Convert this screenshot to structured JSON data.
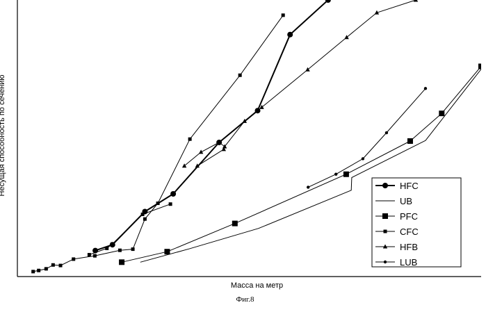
{
  "caption": "Фиг.8",
  "chart_data": {
    "type": "line",
    "title": "",
    "xlabel": "Масса на метр",
    "ylabel": "Несущая способность по сечению",
    "xlim": [
      0,
      100
    ],
    "ylim": [
      0,
      100
    ],
    "grid": false,
    "legend_position": "bottom-right",
    "series": [
      {
        "name": "HFC",
        "marker": "circle-large",
        "line": "thick",
        "points": [
          [
            16.8,
            9.4
          ],
          [
            20.5,
            11.5
          ],
          [
            27.5,
            23.5
          ],
          [
            33.6,
            29.9
          ],
          [
            43.5,
            48.5
          ],
          [
            51.8,
            60.0
          ],
          [
            58.8,
            87.5
          ],
          [
            67,
            100
          ]
        ]
      },
      {
        "name": "UB",
        "marker": "none",
        "line": "thin",
        "points": [
          [
            26.5,
            5.2
          ],
          [
            37,
            10.0
          ],
          [
            52,
            17.4
          ],
          [
            72,
            31.2
          ],
          [
            72.1,
            35.8
          ],
          [
            88,
            49.2
          ],
          [
            100,
            75.0
          ]
        ]
      },
      {
        "name": "PFC",
        "marker": "square-large",
        "line": "thin",
        "points": [
          [
            22.5,
            5.2
          ],
          [
            32.3,
            9.0
          ],
          [
            46.9,
            19.2
          ],
          [
            70.9,
            37.0
          ],
          [
            84.7,
            49.0
          ],
          [
            91.5,
            59.0
          ],
          [
            100,
            76.0
          ]
        ]
      },
      {
        "name": "CFC",
        "marker": "square-small",
        "line": "thin",
        "points": [
          [
            3.4,
            1.8
          ],
          [
            4.6,
            2.2
          ],
          [
            6.2,
            2.8
          ],
          [
            7.7,
            4.2
          ],
          [
            9.3,
            4.0
          ],
          [
            12.1,
            6.3
          ],
          [
            16.7,
            7.5
          ],
          [
            22.1,
            9.5
          ],
          [
            24.9,
            9.9
          ],
          [
            27.5,
            20.8
          ],
          [
            30.3,
            26.5
          ],
          [
            37.2,
            49.7
          ],
          [
            48.0,
            72.8
          ],
          [
            57.3,
            94.5
          ]
        ]
      },
      {
        "name": "CFC",
        "marker": "square-small",
        "line": "thin",
        "points": [
          [
            15.5,
            7.9
          ],
          [
            19.3,
            10.2
          ],
          [
            20.5,
            11.8
          ],
          [
            27.0,
            22.5
          ],
          [
            33.0,
            26.2
          ]
        ]
      },
      {
        "name": "HFB",
        "marker": "triangle",
        "line": "thin",
        "points": [
          [
            36.0,
            40.0
          ],
          [
            39.6,
            45.0
          ],
          [
            43.5,
            48.5
          ],
          [
            44.7,
            47.0
          ],
          [
            49.0,
            56.2
          ],
          [
            52.7,
            61.2
          ],
          [
            62.6,
            74.8
          ],
          [
            71.0,
            86.5
          ],
          [
            77.5,
            95.4
          ],
          [
            85.9,
            100
          ]
        ]
      },
      {
        "name": "HFB",
        "marker": "triangle",
        "line": "thin",
        "points": [
          [
            38.8,
            40.0
          ],
          [
            44.5,
            46.0
          ]
        ]
      },
      {
        "name": "LUB",
        "marker": "dot",
        "line": "thin",
        "points": [
          [
            62.7,
            32.3
          ],
          [
            68.7,
            37.0
          ],
          [
            74.5,
            42.6
          ],
          [
            79.6,
            52.0
          ],
          [
            88.0,
            68.0
          ]
        ]
      }
    ]
  }
}
